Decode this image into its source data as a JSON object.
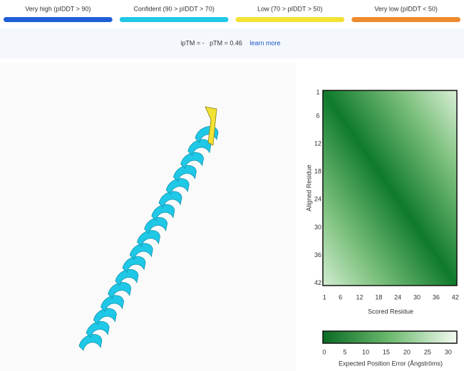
{
  "legend": {
    "items": [
      {
        "label": "Very high (pIDDT > 90)",
        "color": "#1f5fd6"
      },
      {
        "label": "Confident (90 > pIDDT > 70)",
        "color": "#1ec8e6"
      },
      {
        "label": "Low (70 > pIDDT > 50)",
        "color": "#f2e234"
      },
      {
        "label": "Very low (pIDDT < 50)",
        "color": "#ee8a2e"
      }
    ]
  },
  "metrics": {
    "iptm": "ipTM = -",
    "ptm": "pTM = 0.46",
    "link": "learn more"
  },
  "pae": {
    "y_label": "Aligned Residue",
    "x_label": "Scored Residue",
    "range": [
      1,
      42
    ],
    "ticks": [
      1,
      6,
      12,
      18,
      24,
      30,
      36,
      42
    ],
    "colorbar": {
      "label": "Expected Position Error (Ångströms)",
      "range": [
        0,
        31.75
      ],
      "ticks": [
        0,
        5,
        10,
        15,
        20,
        25,
        30
      ]
    }
  }
}
